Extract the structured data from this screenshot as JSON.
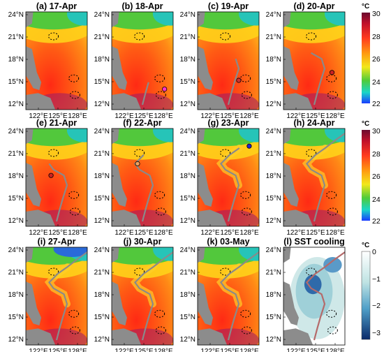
{
  "panels": [
    {
      "label": "(a) 17-Apr"
    },
    {
      "label": "(b) 18-Apr"
    },
    {
      "label": "(c) 19-Apr"
    },
    {
      "label": "(d) 20-Apr"
    },
    {
      "label": "(e) 21-Apr"
    },
    {
      "label": "(f) 22-Apr"
    },
    {
      "label": "(g) 23-Apr"
    },
    {
      "label": "(h) 24-Apr"
    },
    {
      "label": "(i) 27-Apr"
    },
    {
      "label": "(j) 30-Apr"
    },
    {
      "label": "(k) 03-May"
    },
    {
      "label": "(l) SST cooling"
    }
  ],
  "lat_ticks": [
    "24°N",
    "21°N",
    "18°N",
    "15°N",
    "12°N"
  ],
  "lon_ticks": [
    "122°E",
    "125°E",
    "128°E"
  ],
  "colorbars": {
    "sst": {
      "unit": "°C",
      "ticks": [
        "30",
        "28",
        "26",
        "24",
        "22"
      ]
    },
    "cooling": {
      "unit": "°C",
      "ticks": [
        "0",
        "−1",
        "−2",
        "−3"
      ]
    }
  },
  "colors": {
    "land": "#8c8c8c",
    "track": "#8a8a8a",
    "track_recent": "#b56a6a",
    "cyclone_points": [
      "#e0e0e0",
      "#ff33cc",
      "#cc3333",
      "#cc2222",
      "#cc2222",
      "#f0a060",
      "#2222cc"
    ]
  }
}
